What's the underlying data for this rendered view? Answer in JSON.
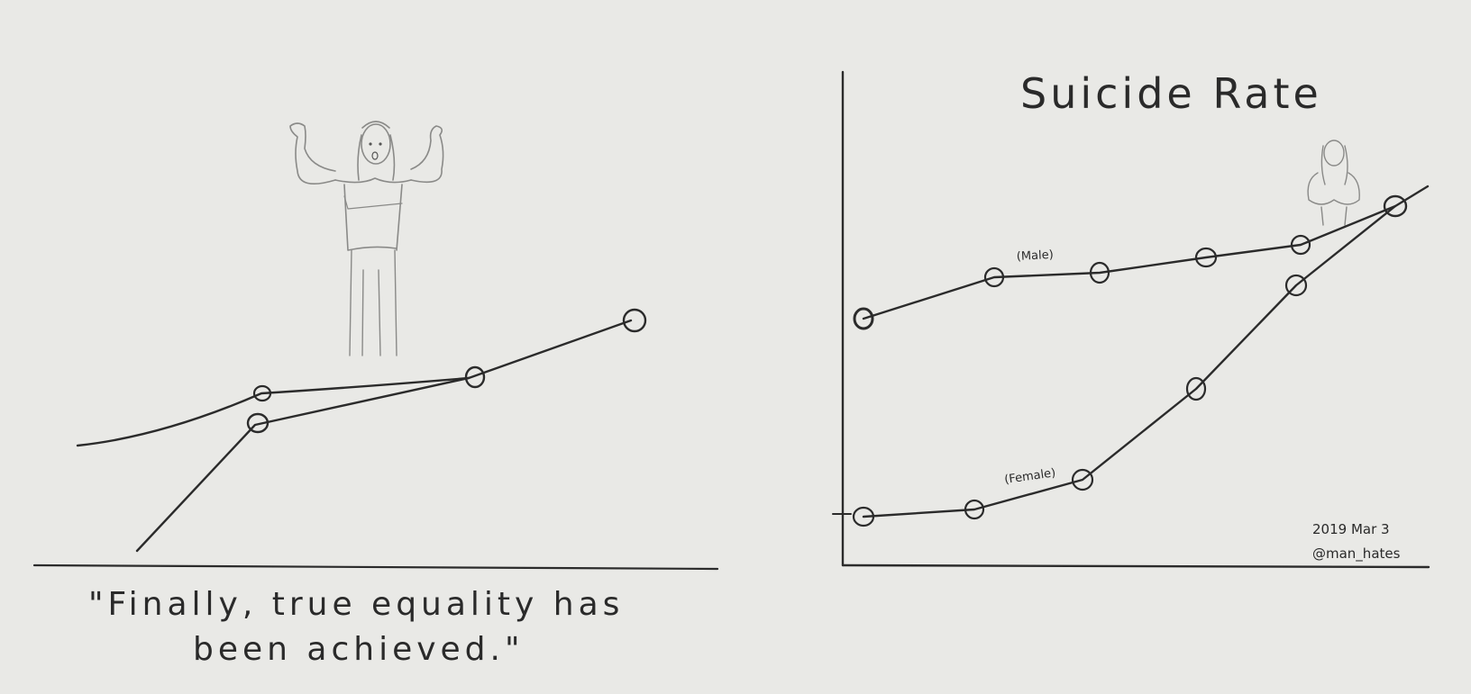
{
  "left_panel": {
    "caption_line1": "\"Finally, true equality has",
    "caption_line2": "been achieved.\""
  },
  "right_panel": {
    "title": "Suicide Rate",
    "male_label": "(Male)",
    "female_label": "(Female)",
    "signature_date": "2019 Mar 3",
    "signature_handle": "@man_hates"
  }
}
